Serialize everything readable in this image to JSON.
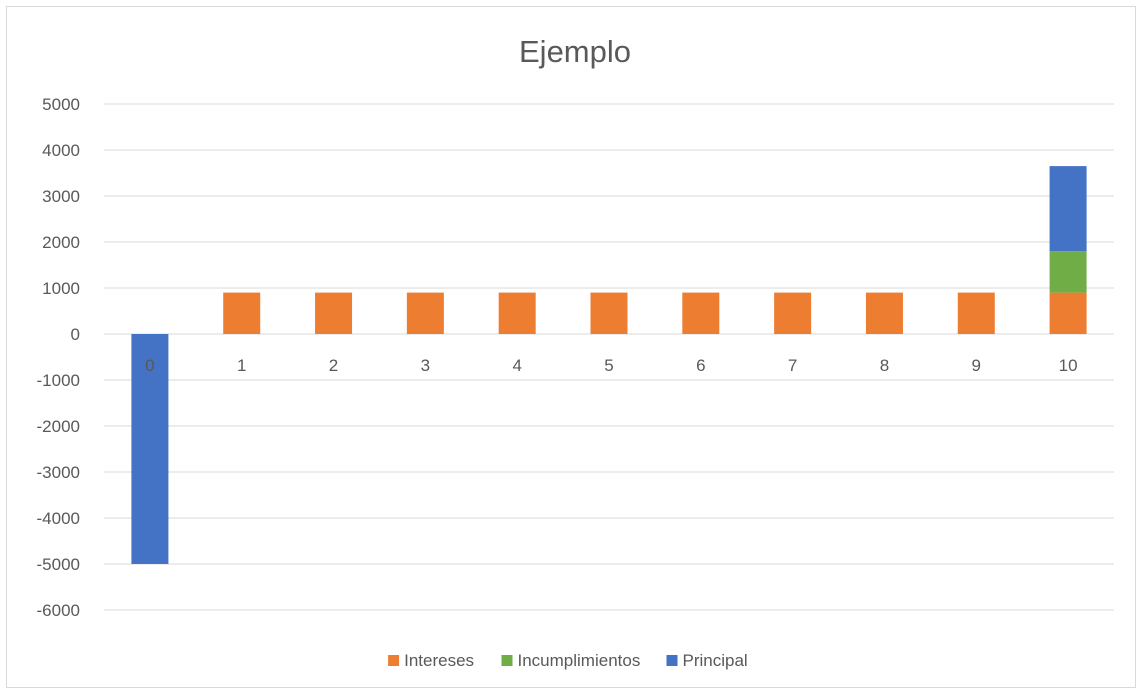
{
  "chart_data": {
    "type": "bar",
    "stacked": true,
    "title": "Ejemplo",
    "xlabel": "",
    "ylabel": "",
    "categories": [
      "0",
      "1",
      "2",
      "3",
      "4",
      "5",
      "6",
      "7",
      "8",
      "9",
      "10"
    ],
    "series": [
      {
        "name": "Intereses",
        "color": "#ED7D31",
        "values": [
          0,
          900,
          900,
          900,
          900,
          900,
          900,
          900,
          900,
          900,
          900
        ]
      },
      {
        "name": "Incumplimientos",
        "color": "#70AD47",
        "values": [
          0,
          0,
          0,
          0,
          0,
          0,
          0,
          0,
          0,
          0,
          900
        ]
      },
      {
        "name": "Principal",
        "color": "#4472C4",
        "values": [
          -5000,
          0,
          0,
          0,
          0,
          0,
          0,
          0,
          0,
          0,
          1850
        ]
      }
    ],
    "ylim": [
      -6000,
      5000
    ],
    "yticks": [
      5000,
      4000,
      3000,
      2000,
      1000,
      0,
      -1000,
      -2000,
      -3000,
      -4000,
      -5000,
      -6000
    ],
    "grid": true,
    "legend_position": "bottom"
  }
}
